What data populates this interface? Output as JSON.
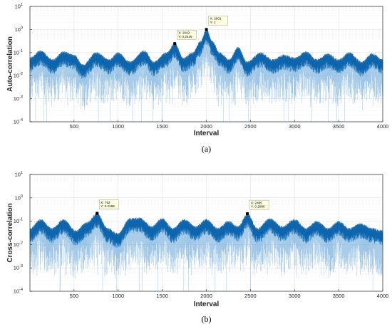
{
  "chart_data": [
    {
      "type": "line",
      "caption": "(a)",
      "xlabel": "Interval",
      "ylabel": "Auto-correlation",
      "xlim": [
        0,
        4000
      ],
      "ylim": [
        0.0001,
        10
      ],
      "yscale": "log",
      "grid": true,
      "line_color": "#0072bd",
      "x_ticks": [
        500,
        1000,
        1500,
        2000,
        2500,
        3000,
        3500,
        4000
      ],
      "y_ticks": [
        {
          "base": "10",
          "exp": "-4",
          "value": 0.0001
        },
        {
          "base": "10",
          "exp": "-3",
          "value": 0.001
        },
        {
          "base": "10",
          "exp": "-2",
          "value": 0.01
        },
        {
          "base": "10",
          "exp": "-1",
          "value": 0.1
        },
        {
          "base": "10",
          "exp": "0",
          "value": 1
        },
        {
          "base": "10",
          "exp": "1",
          "value": 10
        }
      ],
      "envelope": [
        {
          "x": 0,
          "y": 0.06
        },
        {
          "x": 120,
          "y": 0.12
        },
        {
          "x": 260,
          "y": 0.05
        },
        {
          "x": 380,
          "y": 0.11
        },
        {
          "x": 500,
          "y": 0.08
        },
        {
          "x": 600,
          "y": 0.03
        },
        {
          "x": 750,
          "y": 0.1
        },
        {
          "x": 900,
          "y": 0.05
        },
        {
          "x": 1000,
          "y": 0.1
        },
        {
          "x": 1130,
          "y": 0.04
        },
        {
          "x": 1300,
          "y": 0.12
        },
        {
          "x": 1400,
          "y": 0.04
        },
        {
          "x": 1550,
          "y": 0.1
        },
        {
          "x": 1642,
          "y": 0.2446
        },
        {
          "x": 1740,
          "y": 0.06
        },
        {
          "x": 1850,
          "y": 0.1
        },
        {
          "x": 1930,
          "y": 0.3
        },
        {
          "x": 2001,
          "y": 1
        },
        {
          "x": 2070,
          "y": 0.3
        },
        {
          "x": 2150,
          "y": 0.1
        },
        {
          "x": 2260,
          "y": 0.05
        },
        {
          "x": 2360,
          "y": 0.17
        },
        {
          "x": 2460,
          "y": 0.04
        },
        {
          "x": 2620,
          "y": 0.1
        },
        {
          "x": 2750,
          "y": 0.05
        },
        {
          "x": 2880,
          "y": 0.08
        },
        {
          "x": 3000,
          "y": 0.06
        },
        {
          "x": 3130,
          "y": 0.11
        },
        {
          "x": 3250,
          "y": 0.05
        },
        {
          "x": 3380,
          "y": 0.09
        },
        {
          "x": 3500,
          "y": 0.05
        },
        {
          "x": 3620,
          "y": 0.1
        },
        {
          "x": 3760,
          "y": 0.04
        },
        {
          "x": 3880,
          "y": 0.09
        },
        {
          "x": 4000,
          "y": 0.05
        }
      ],
      "datatips": [
        {
          "x": 1642,
          "y": 0.2446,
          "line1": "X: 1642",
          "line2": "Y: 0.2446"
        },
        {
          "x": 2001,
          "y": 1,
          "line1": "X: 2001",
          "line2": "Y: 1"
        }
      ]
    },
    {
      "type": "line",
      "caption": "(b)",
      "xlabel": "Interval",
      "ylabel": "Cross-correlation",
      "xlim": [
        0,
        4000
      ],
      "ylim": [
        0.0001,
        10
      ],
      "yscale": "log",
      "grid": true,
      "line_color": "#0072bd",
      "x_ticks": [
        500,
        1000,
        1500,
        2000,
        2500,
        3000,
        3500,
        4000
      ],
      "y_ticks": [
        {
          "base": "10",
          "exp": "-4",
          "value": 0.0001
        },
        {
          "base": "10",
          "exp": "-3",
          "value": 0.001
        },
        {
          "base": "10",
          "exp": "-2",
          "value": 0.01
        },
        {
          "base": "10",
          "exp": "-1",
          "value": 0.1
        },
        {
          "base": "10",
          "exp": "0",
          "value": 1
        },
        {
          "base": "10",
          "exp": "1",
          "value": 10
        }
      ],
      "envelope": [
        {
          "x": 0,
          "y": 0.05
        },
        {
          "x": 120,
          "y": 0.12
        },
        {
          "x": 250,
          "y": 0.05
        },
        {
          "x": 380,
          "y": 0.12
        },
        {
          "x": 520,
          "y": 0.04
        },
        {
          "x": 650,
          "y": 0.09
        },
        {
          "x": 762,
          "y": 0.2169
        },
        {
          "x": 880,
          "y": 0.05
        },
        {
          "x": 1000,
          "y": 0.03
        },
        {
          "x": 1130,
          "y": 0.13
        },
        {
          "x": 1250,
          "y": 0.14
        },
        {
          "x": 1380,
          "y": 0.06
        },
        {
          "x": 1500,
          "y": 0.13
        },
        {
          "x": 1620,
          "y": 0.05
        },
        {
          "x": 1750,
          "y": 0.12
        },
        {
          "x": 1880,
          "y": 0.06
        },
        {
          "x": 2000,
          "y": 0.12
        },
        {
          "x": 2130,
          "y": 0.05
        },
        {
          "x": 2250,
          "y": 0.1
        },
        {
          "x": 2360,
          "y": 0.06
        },
        {
          "x": 2465,
          "y": 0.2086
        },
        {
          "x": 2580,
          "y": 0.05
        },
        {
          "x": 2720,
          "y": 0.13
        },
        {
          "x": 2860,
          "y": 0.06
        },
        {
          "x": 3000,
          "y": 0.12
        },
        {
          "x": 3130,
          "y": 0.05
        },
        {
          "x": 3250,
          "y": 0.1
        },
        {
          "x": 3380,
          "y": 0.05
        },
        {
          "x": 3500,
          "y": 0.1
        },
        {
          "x": 3620,
          "y": 0.05
        },
        {
          "x": 3750,
          "y": 0.08
        },
        {
          "x": 3880,
          "y": 0.05
        },
        {
          "x": 4000,
          "y": 0.04
        }
      ],
      "datatips": [
        {
          "x": 762,
          "y": 0.2169,
          "line1": "X: 762",
          "line2": "Y: 0.2169"
        },
        {
          "x": 2465,
          "y": 0.2086,
          "line1": "X: 2465",
          "line2": "Y: 0.2086"
        }
      ]
    }
  ]
}
